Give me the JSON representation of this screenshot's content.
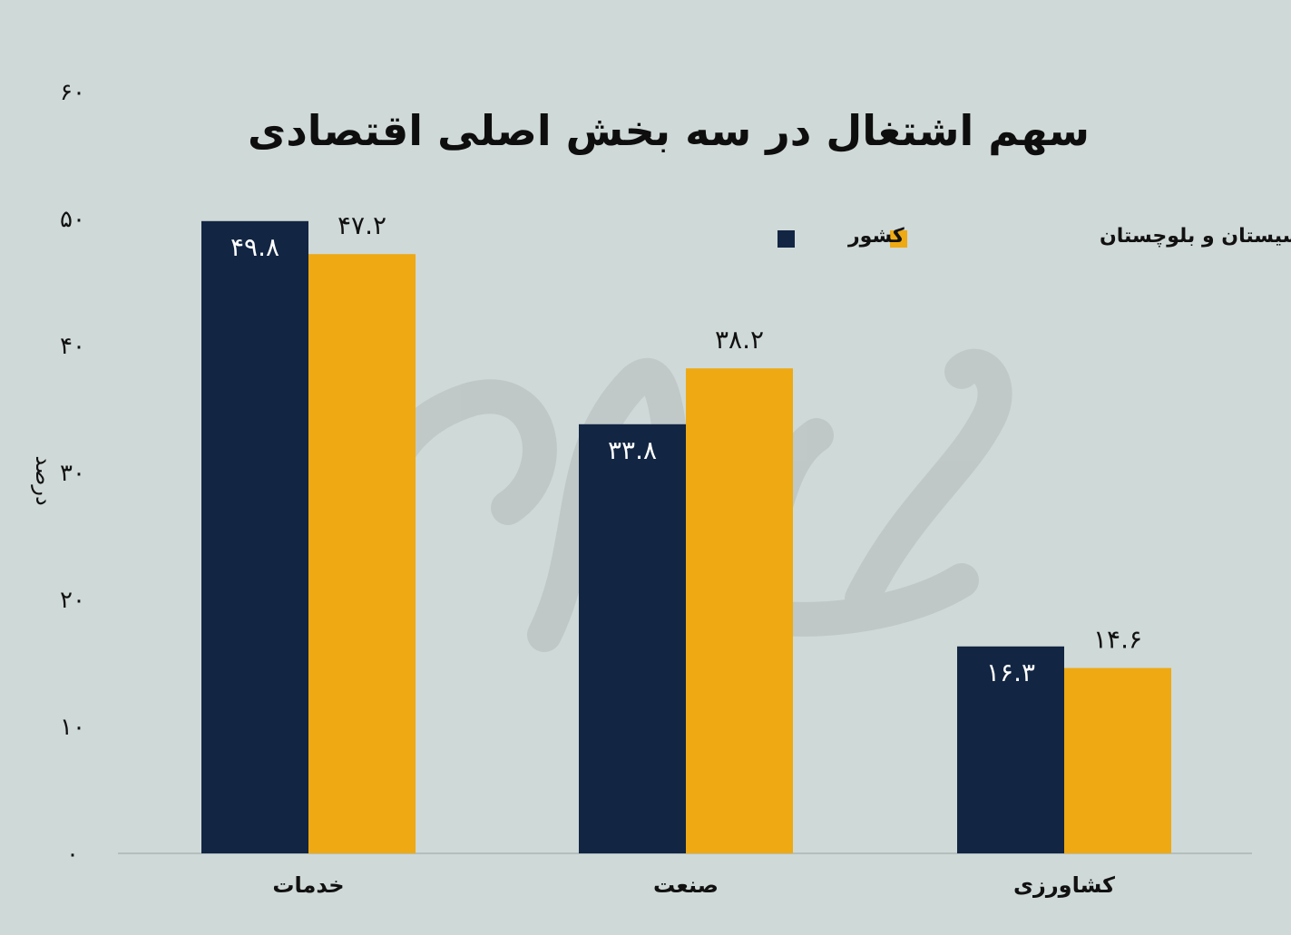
{
  "chart_data": {
    "type": "bar",
    "title": "سهم اشتغال در سه بخش اصلی اقتصادی",
    "ylabel": "درصد",
    "xlabel": "",
    "ylim": [
      0,
      60
    ],
    "yticks": [
      0,
      10,
      20,
      30,
      40,
      50,
      60
    ],
    "ytick_labels": [
      "۰",
      "۱۰",
      "۲۰",
      "۳۰",
      "۴۰",
      "۵۰",
      "۶۰"
    ],
    "categories": [
      "خدمات",
      "صنعت",
      "کشاورزی"
    ],
    "series": [
      {
        "name": "کشور",
        "color": "#122543",
        "values": [
          49.8,
          33.8,
          16.3
        ],
        "labels": [
          "۴۹.۸",
          "۳۳.۸",
          "۱۶.۳"
        ]
      },
      {
        "name": "سیستان و بلوچستان",
        "color": "#eea913",
        "values": [
          47.2,
          38.2,
          14.6
        ],
        "labels": [
          "۴۷.۲",
          "۳۸.۲",
          "۱۴.۶"
        ]
      }
    ],
    "legend_position": "top-right",
    "grid": false,
    "watermark": "فردای اقتصاد"
  }
}
